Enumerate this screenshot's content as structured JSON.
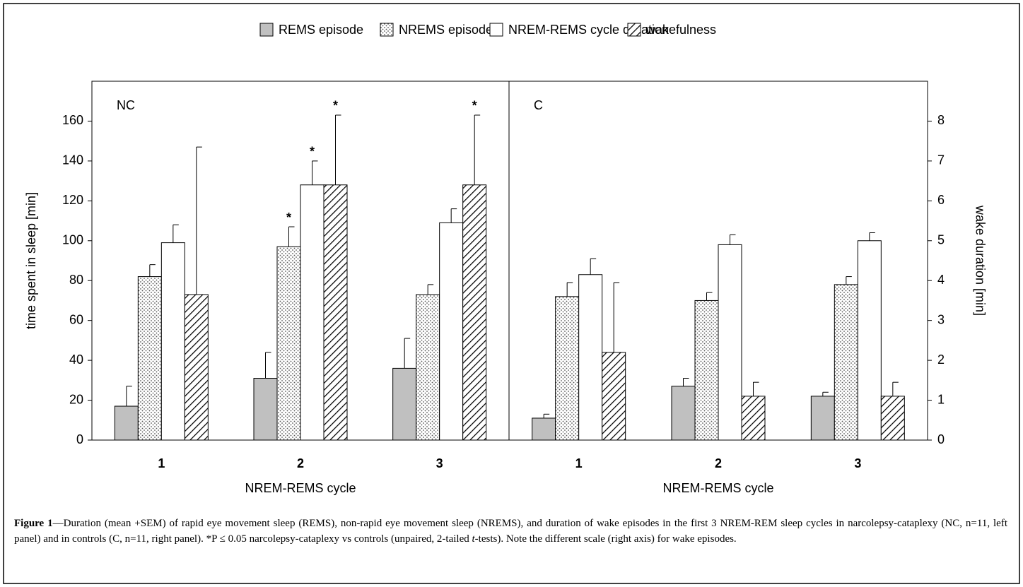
{
  "chart_data": {
    "type": "bar",
    "series": [
      {
        "name": "REMS episode",
        "color": "#c0c0c0",
        "pattern": "solid"
      },
      {
        "name": "NREMS episode",
        "color": "#ffffff",
        "pattern": "dots"
      },
      {
        "name": "NREM-REMS cycle duration",
        "color": "#ffffff",
        "pattern": "solid"
      },
      {
        "name": "wakefulness",
        "color": "#ffffff",
        "pattern": "hatch",
        "axis": "y2"
      }
    ],
    "ylabel": "time spent in sleep [min]",
    "y2label": "wake duration [min]",
    "ylim": [
      0,
      180
    ],
    "yticks": [
      0,
      20,
      40,
      60,
      80,
      100,
      120,
      140,
      160
    ],
    "y2lim": [
      0,
      9
    ],
    "y2ticks": [
      0,
      1,
      2,
      3,
      4,
      5,
      6,
      7,
      8
    ],
    "panels": [
      {
        "label": "NC",
        "xlabel": "NREM-REMS cycle",
        "categories": [
          "1",
          "2",
          "3"
        ],
        "values": [
          [
            17,
            31,
            36
          ],
          [
            82,
            97,
            73
          ],
          [
            99,
            128,
            109
          ],
          [
            3.65,
            6.4,
            6.4
          ]
        ],
        "errors": [
          [
            10,
            13,
            15
          ],
          [
            6,
            10,
            5
          ],
          [
            9,
            12,
            7
          ],
          [
            3.7,
            1.75,
            1.75
          ]
        ],
        "annotations": [
          [
            null,
            null,
            null
          ],
          [
            null,
            "*",
            null
          ],
          [
            null,
            "*",
            null
          ],
          [
            null,
            "*",
            "*"
          ]
        ]
      },
      {
        "label": "C",
        "xlabel": "NREM-REMS cycle",
        "categories": [
          "1",
          "2",
          "3"
        ],
        "values": [
          [
            11,
            27,
            22
          ],
          [
            72,
            70,
            78
          ],
          [
            83,
            98,
            100
          ],
          [
            2.2,
            1.1,
            1.1
          ]
        ],
        "errors": [
          [
            2,
            4,
            2
          ],
          [
            7,
            4,
            4
          ],
          [
            8,
            5,
            4
          ],
          [
            1.75,
            0.35,
            0.35
          ]
        ],
        "annotations": [
          [
            null,
            null,
            null
          ],
          [
            null,
            null,
            null
          ],
          [
            null,
            null,
            null
          ],
          [
            null,
            null,
            null
          ]
        ]
      }
    ]
  },
  "caption": [
    "Figure 1",
    "—Duration (mean +SEM) of rapid eye movement sleep (REMS), non-rapid eye movement sleep (NREMS), and duration of wake episodes in the first 3 NREM-REM sleep cycles in narcolepsy-cataplexy (NC, n=11, left panel) and in controls (C, n=11, right panel). *P ≤ 0.05 narcolepsy-cataplexy vs controls (unpaired, 2-tailed ",
    "t",
    "-tests). Note the different scale (right axis) for wake episodes."
  ]
}
